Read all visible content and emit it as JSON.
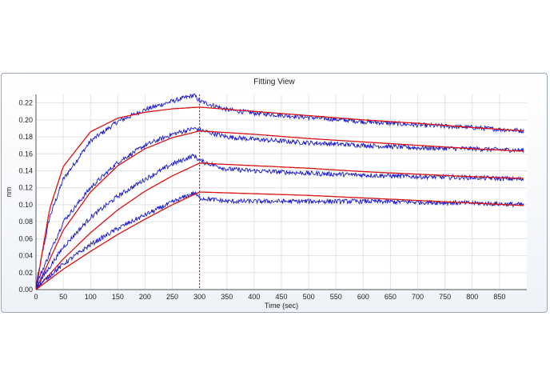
{
  "panel": {
    "title": "Fitting View"
  },
  "chart_data": {
    "type": "line",
    "title": "Fitting View",
    "xlabel": "Time (sec)",
    "ylabel": "nm",
    "xlim": [
      0,
      900
    ],
    "ylim": [
      0,
      0.23
    ],
    "x_ticks": [
      0,
      50,
      100,
      150,
      200,
      250,
      300,
      350,
      400,
      450,
      500,
      550,
      600,
      650,
      700,
      750,
      800,
      850
    ],
    "y_ticks": [
      0.0,
      0.02,
      0.04,
      0.06,
      0.08,
      0.1,
      0.12,
      0.14,
      0.16,
      0.18,
      0.2,
      0.22
    ],
    "grid": true,
    "legend": "none",
    "dissociation_start_line": {
      "x": 300,
      "style": "dotted",
      "color": "#cc0000"
    },
    "colors": {
      "raw": "#1a1acc",
      "fit": "#dd1111"
    },
    "series": [
      {
        "role": "raw",
        "x": [
          0,
          25,
          50,
          100,
          150,
          200,
          250,
          290,
          300,
          350,
          400,
          500,
          600,
          700,
          800,
          895
        ],
        "values": [
          0.005,
          0.085,
          0.13,
          0.175,
          0.198,
          0.212,
          0.222,
          0.229,
          0.222,
          0.212,
          0.208,
          0.203,
          0.198,
          0.194,
          0.191,
          0.187
        ]
      },
      {
        "role": "fit",
        "x": [
          0,
          25,
          50,
          100,
          150,
          200,
          250,
          300,
          400,
          500,
          600,
          700,
          800,
          895
        ],
        "values": [
          0.0,
          0.095,
          0.145,
          0.186,
          0.202,
          0.209,
          0.213,
          0.215,
          0.21,
          0.205,
          0.2,
          0.196,
          0.191,
          0.187
        ]
      },
      {
        "role": "raw",
        "x": [
          0,
          50,
          100,
          150,
          200,
          250,
          290,
          300,
          350,
          400,
          500,
          600,
          700,
          800,
          895
        ],
        "values": [
          0.005,
          0.08,
          0.12,
          0.15,
          0.17,
          0.183,
          0.19,
          0.188,
          0.18,
          0.177,
          0.173,
          0.17,
          0.167,
          0.166,
          0.164
        ]
      },
      {
        "role": "fit",
        "x": [
          0,
          50,
          100,
          150,
          200,
          250,
          300,
          400,
          500,
          600,
          700,
          800,
          895
        ],
        "values": [
          0.0,
          0.07,
          0.115,
          0.146,
          0.166,
          0.179,
          0.187,
          0.183,
          0.178,
          0.174,
          0.17,
          0.166,
          0.163
        ]
      },
      {
        "role": "raw",
        "x": [
          0,
          50,
          100,
          150,
          200,
          250,
          290,
          300,
          350,
          400,
          500,
          600,
          700,
          800,
          895
        ],
        "values": [
          0.003,
          0.05,
          0.085,
          0.11,
          0.13,
          0.148,
          0.158,
          0.152,
          0.142,
          0.14,
          0.137,
          0.135,
          0.133,
          0.132,
          0.13
        ]
      },
      {
        "role": "fit",
        "x": [
          0,
          50,
          100,
          150,
          200,
          250,
          300,
          400,
          500,
          600,
          700,
          800,
          895
        ],
        "values": [
          0.0,
          0.036,
          0.067,
          0.094,
          0.116,
          0.134,
          0.149,
          0.146,
          0.143,
          0.139,
          0.136,
          0.133,
          0.131
        ]
      },
      {
        "role": "raw",
        "x": [
          0,
          50,
          100,
          150,
          200,
          250,
          290,
          300,
          350,
          400,
          500,
          600,
          700,
          800,
          895
        ],
        "values": [
          0.002,
          0.03,
          0.053,
          0.072,
          0.088,
          0.103,
          0.114,
          0.108,
          0.104,
          0.104,
          0.104,
          0.104,
          0.103,
          0.102,
          0.1
        ]
      },
      {
        "role": "fit",
        "x": [
          0,
          50,
          100,
          150,
          200,
          250,
          300,
          400,
          500,
          600,
          700,
          800,
          895
        ],
        "values": [
          0.0,
          0.024,
          0.045,
          0.065,
          0.083,
          0.1,
          0.115,
          0.113,
          0.111,
          0.108,
          0.105,
          0.102,
          0.099
        ]
      }
    ]
  }
}
